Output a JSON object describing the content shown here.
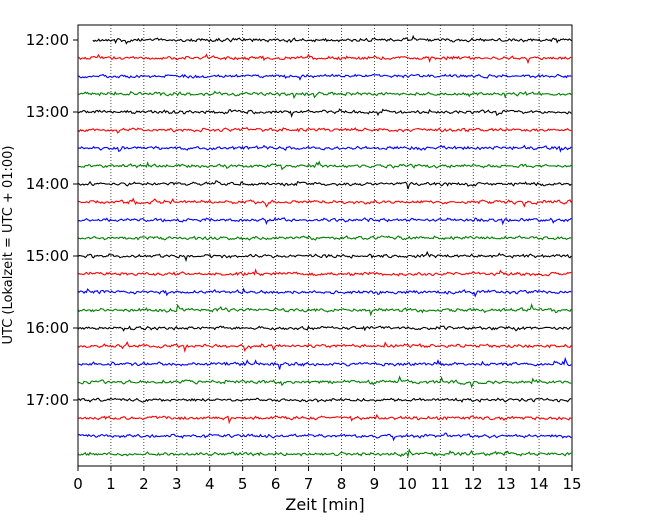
{
  "chart_data": {
    "type": "line",
    "xlabel": "Zeit  [min]",
    "ylabel": "UTC (Lokalzeit = UTC + 01:00)",
    "xlim": [
      0,
      15
    ],
    "x_ticks": [
      "0",
      "1",
      "2",
      "3",
      "4",
      "5",
      "6",
      "7",
      "8",
      "9",
      "10",
      "11",
      "12",
      "13",
      "14",
      "15"
    ],
    "y_ticks": [
      "12:00",
      "13:00",
      "14:00",
      "15:00",
      "16:00",
      "17:00"
    ],
    "grid": "vertical dotted lines at each minute",
    "trace_interval_minutes": 15,
    "trace_start_times": [
      "12:00",
      "12:15",
      "12:30",
      "12:45",
      "13:00",
      "13:15",
      "13:30",
      "13:45",
      "14:00",
      "14:15",
      "14:30",
      "14:45",
      "15:00",
      "15:15",
      "15:30",
      "15:45",
      "16:00",
      "16:15",
      "16:30",
      "16:45",
      "17:00",
      "17:15",
      "17:30",
      "17:45"
    ],
    "trace_colors": [
      "#000000",
      "#ff0000",
      "#0000ff",
      "#008000"
    ]
  }
}
